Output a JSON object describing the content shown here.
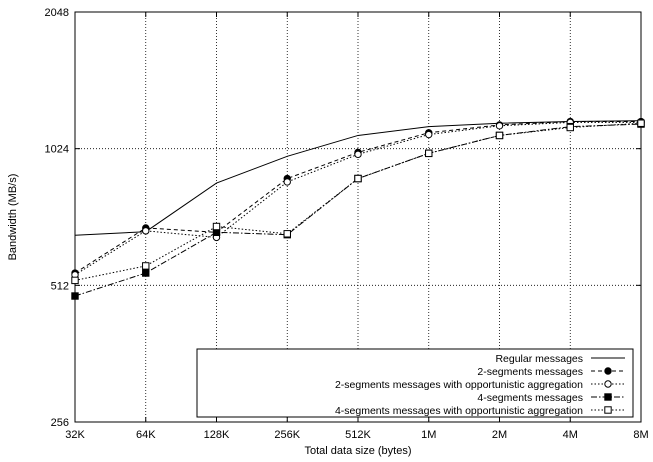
{
  "chart_data": {
    "type": "line",
    "xlabel": "Total data size (bytes)",
    "ylabel": "Bandwidth (MB/s)",
    "x_scale": "log2",
    "y_scale": "log2",
    "categories": [
      "32K",
      "64K",
      "128K",
      "256K",
      "512K",
      "1M",
      "2M",
      "4M",
      "8M"
    ],
    "yticks": [
      256,
      512,
      1024,
      2048
    ],
    "ylim": [
      256,
      2048
    ],
    "grid": true,
    "legend_position": "bottom-right",
    "series": [
      {
        "name": "Regular messages",
        "marker": "none",
        "dash": "solid",
        "values": [
          660,
          672,
          860,
          985,
          1095,
          1145,
          1165,
          1175,
          1180
        ]
      },
      {
        "name": "2-segments messages",
        "marker": "filled-circle",
        "dash": "dashed",
        "values": [
          545,
          685,
          670,
          880,
          1005,
          1110,
          1155,
          1175,
          1175
        ]
      },
      {
        "name": "2-segments messages with opportunistic aggregation",
        "marker": "open-circle",
        "dash": "dotted",
        "values": [
          540,
          675,
          653,
          865,
          995,
          1100,
          1150,
          1170,
          1170
        ]
      },
      {
        "name": "4-segments messages",
        "marker": "filled-square",
        "dash": "dash-dot",
        "values": [
          485,
          545,
          670,
          662,
          880,
          1000,
          1095,
          1145,
          1160
        ]
      },
      {
        "name": "4-segments messages with opportunistic aggregation",
        "marker": "open-square",
        "dash": "dotted",
        "values": [
          525,
          565,
          690,
          665,
          880,
          1000,
          1095,
          1140,
          1165
        ]
      }
    ]
  }
}
